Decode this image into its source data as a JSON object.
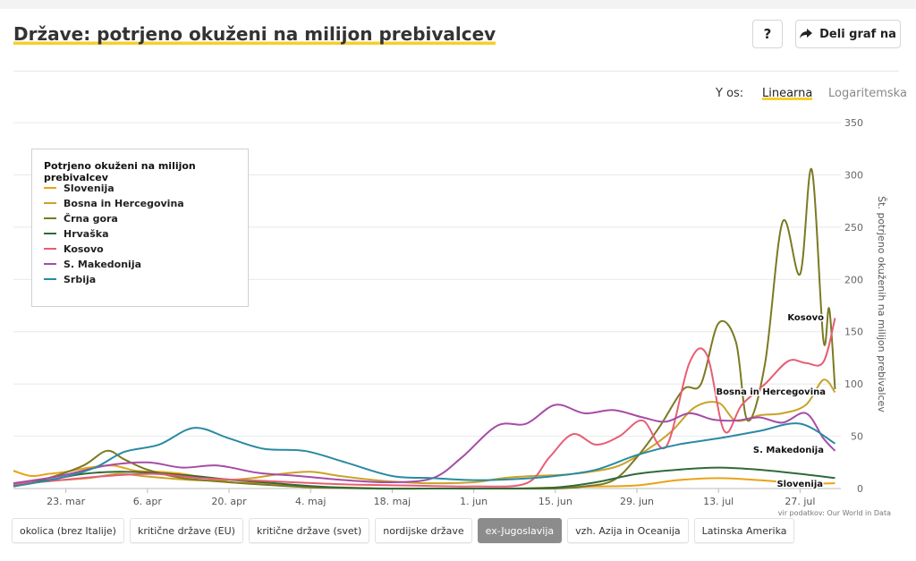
{
  "header": {
    "title": "Države: potrjeno okuženi na milijon prebivalcev",
    "help_label": "?",
    "share_label": "Deli graf na",
    "share_icon": "share-arrow-icon"
  },
  "axis_controls": {
    "label": "Y os:",
    "linear": "Linearna",
    "log": "Logaritemska",
    "selected": "Linearna"
  },
  "legend": {
    "title": "Potrjeno okuženi na milijon prebivalcev",
    "items": [
      "Slovenija",
      "Bosna in Hercegovina",
      "Črna gora",
      "Hrvaška",
      "Kosovo",
      "S. Makedonija",
      "Srbija"
    ]
  },
  "source": "vir podatkov: Our World in Data",
  "tabs": [
    "okolica (brez Italije)",
    "kritične države (EU)",
    "kritične države (svet)",
    "nordijske države",
    "ex-Jugoslavija",
    "vzh. Azija in Oceanija",
    "Latinska Amerika"
  ],
  "active_tab": "ex-Jugoslavija",
  "chart_data": {
    "type": "line",
    "ylabel": "Št. potrjeno okuženih na milijon prebivalcev",
    "ylim": [
      0,
      350
    ],
    "yticks": [
      0,
      50,
      100,
      150,
      200,
      250,
      300,
      350
    ],
    "xticks": [
      "23. mar",
      "6. apr",
      "20. apr",
      "4. maj",
      "18. maj",
      "1. jun",
      "15. jun",
      "29. jun",
      "13. jul",
      "27. jul"
    ],
    "x_range": [
      "2020-03-14",
      "2020-08-03"
    ],
    "grid": true,
    "legend_position": "top-left",
    "end_labels": [
      "Kosovo",
      "Bosna in Hercegovina",
      "S. Makedonija",
      "Slovenija"
    ],
    "series": [
      {
        "name": "Slovenija",
        "color": "#e8a317",
        "x": [
          "2020-03-14",
          "2020-03-17",
          "2020-03-20",
          "2020-03-23",
          "2020-03-27",
          "2020-03-31",
          "2020-04-04",
          "2020-04-08",
          "2020-04-12",
          "2020-04-16",
          "2020-04-20",
          "2020-04-25",
          "2020-04-30",
          "2020-05-04",
          "2020-05-10",
          "2020-05-18",
          "2020-05-25",
          "2020-06-01",
          "2020-06-08",
          "2020-06-15",
          "2020-06-22",
          "2020-06-29",
          "2020-07-06",
          "2020-07-13",
          "2020-07-20",
          "2020-07-27",
          "2020-08-02"
        ],
        "y": [
          17,
          12,
          14,
          16,
          20,
          22,
          17,
          16,
          14,
          10,
          6,
          5,
          3,
          1,
          1,
          0,
          0,
          0,
          0,
          1,
          2,
          3,
          8,
          10,
          8,
          5,
          5
        ]
      },
      {
        "name": "Bosna in Hercegovina",
        "color": "#c9a227",
        "x": [
          "2020-03-14",
          "2020-03-18",
          "2020-03-22",
          "2020-03-27",
          "2020-04-01",
          "2020-04-05",
          "2020-04-09",
          "2020-04-14",
          "2020-04-19",
          "2020-04-24",
          "2020-04-29",
          "2020-05-04",
          "2020-05-09",
          "2020-05-15",
          "2020-05-20",
          "2020-05-25",
          "2020-06-01",
          "2020-06-06",
          "2020-06-11",
          "2020-06-16",
          "2020-06-21",
          "2020-06-26",
          "2020-07-01",
          "2020-07-05",
          "2020-07-09",
          "2020-07-13",
          "2020-07-16",
          "2020-07-20",
          "2020-07-24",
          "2020-07-28",
          "2020-07-31",
          "2020-08-02"
        ],
        "y": [
          5,
          6,
          8,
          10,
          14,
          12,
          10,
          8,
          8,
          10,
          14,
          16,
          12,
          8,
          6,
          5,
          6,
          10,
          12,
          13,
          16,
          22,
          38,
          55,
          78,
          82,
          65,
          70,
          72,
          80,
          104,
          92
        ]
      },
      {
        "name": "Črna gora",
        "color": "#7a7a22",
        "x": [
          "2020-03-14",
          "2020-03-20",
          "2020-03-26",
          "2020-03-30",
          "2020-04-02",
          "2020-04-06",
          "2020-04-12",
          "2020-04-20",
          "2020-04-28",
          "2020-05-05",
          "2020-05-15",
          "2020-05-25",
          "2020-06-05",
          "2020-06-15",
          "2020-06-20",
          "2020-06-25",
          "2020-06-29",
          "2020-07-03",
          "2020-07-07",
          "2020-07-10",
          "2020-07-13",
          "2020-07-16",
          "2020-07-18",
          "2020-07-21",
          "2020-07-24",
          "2020-07-27",
          "2020-07-29",
          "2020-07-31",
          "2020-08-01",
          "2020-08-02"
        ],
        "y": [
          2,
          10,
          22,
          36,
          28,
          18,
          10,
          6,
          3,
          1,
          0,
          0,
          0,
          0,
          2,
          8,
          30,
          60,
          95,
          100,
          158,
          140,
          65,
          120,
          255,
          205,
          305,
          142,
          172,
          95
        ]
      },
      {
        "name": "Hrvaška",
        "color": "#2f6b3a",
        "x": [
          "2020-03-14",
          "2020-03-20",
          "2020-03-26",
          "2020-04-01",
          "2020-04-07",
          "2020-04-14",
          "2020-04-21",
          "2020-04-28",
          "2020-05-05",
          "2020-05-15",
          "2020-05-25",
          "2020-06-05",
          "2020-06-15",
          "2020-06-22",
          "2020-06-29",
          "2020-07-06",
          "2020-07-13",
          "2020-07-20",
          "2020-07-27",
          "2020-08-02"
        ],
        "y": [
          3,
          8,
          14,
          16,
          15,
          12,
          8,
          5,
          2,
          0,
          0,
          0,
          1,
          6,
          14,
          18,
          20,
          18,
          14,
          10
        ]
      },
      {
        "name": "Kosovo",
        "color": "#e85d75",
        "x": [
          "2020-03-14",
          "2020-03-22",
          "2020-03-30",
          "2020-04-07",
          "2020-04-15",
          "2020-04-23",
          "2020-05-01",
          "2020-05-10",
          "2020-05-20",
          "2020-06-01",
          "2020-06-10",
          "2020-06-14",
          "2020-06-18",
          "2020-06-22",
          "2020-06-26",
          "2020-06-30",
          "2020-07-04",
          "2020-07-08",
          "2020-07-11",
          "2020-07-14",
          "2020-07-17",
          "2020-07-21",
          "2020-07-25",
          "2020-07-28",
          "2020-07-31",
          "2020-08-02"
        ],
        "y": [
          4,
          8,
          12,
          14,
          10,
          8,
          6,
          4,
          3,
          2,
          5,
          30,
          52,
          42,
          50,
          65,
          40,
          120,
          128,
          55,
          80,
          100,
          122,
          120,
          121,
          163
        ]
      },
      {
        "name": "S. Makedonija",
        "color": "#a64ca6",
        "x": [
          "2020-03-14",
          "2020-03-22",
          "2020-03-30",
          "2020-04-06",
          "2020-04-12",
          "2020-04-18",
          "2020-04-25",
          "2020-05-02",
          "2020-05-10",
          "2020-05-18",
          "2020-05-25",
          "2020-05-30",
          "2020-06-05",
          "2020-06-10",
          "2020-06-15",
          "2020-06-20",
          "2020-06-25",
          "2020-06-30",
          "2020-07-04",
          "2020-07-08",
          "2020-07-12",
          "2020-07-16",
          "2020-07-20",
          "2020-07-24",
          "2020-07-28",
          "2020-07-31",
          "2020-08-02"
        ],
        "y": [
          5,
          12,
          22,
          25,
          20,
          22,
          15,
          12,
          8,
          6,
          10,
          30,
          60,
          62,
          80,
          72,
          75,
          68,
          64,
          72,
          66,
          65,
          68,
          63,
          72,
          48,
          36
        ]
      },
      {
        "name": "Srbija",
        "color": "#2a8aa3",
        "x": [
          "2020-03-14",
          "2020-03-22",
          "2020-03-28",
          "2020-04-02",
          "2020-04-08",
          "2020-04-14",
          "2020-04-20",
          "2020-04-26",
          "2020-05-03",
          "2020-05-10",
          "2020-05-18",
          "2020-05-25",
          "2020-06-01",
          "2020-06-08",
          "2020-06-15",
          "2020-06-22",
          "2020-06-29",
          "2020-07-06",
          "2020-07-13",
          "2020-07-20",
          "2020-07-27",
          "2020-08-02"
        ],
        "y": [
          2,
          10,
          20,
          35,
          42,
          58,
          48,
          38,
          36,
          25,
          12,
          10,
          8,
          9,
          12,
          18,
          32,
          42,
          48,
          55,
          62,
          43
        ]
      }
    ]
  }
}
